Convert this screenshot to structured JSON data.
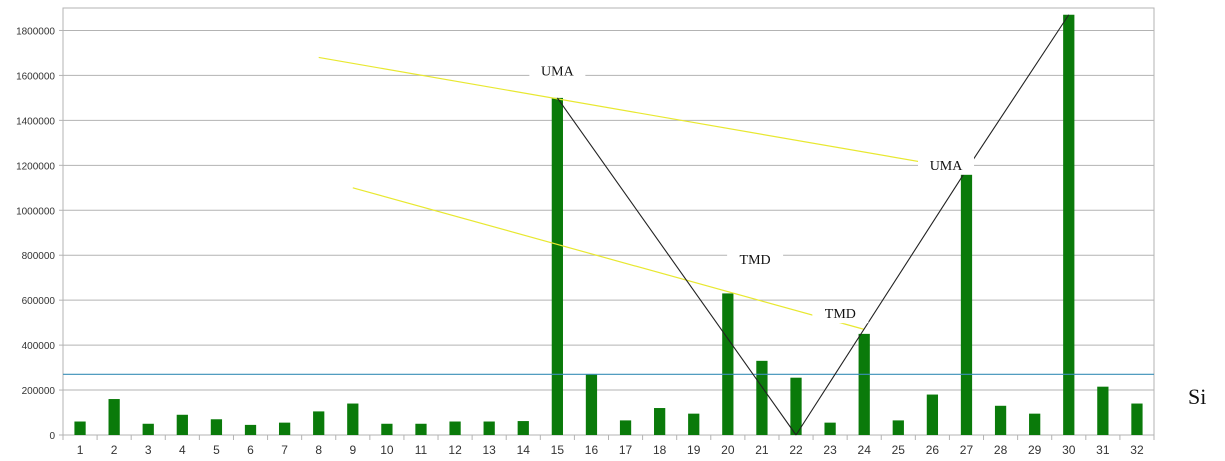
{
  "chart_data": {
    "type": "bar",
    "categories": [
      "1",
      "2",
      "3",
      "4",
      "5",
      "6",
      "7",
      "8",
      "9",
      "10",
      "11",
      "12",
      "13",
      "14",
      "15",
      "16",
      "17",
      "18",
      "19",
      "20",
      "21",
      "22",
      "23",
      "24",
      "25",
      "26",
      "27",
      "28",
      "29",
      "30",
      "31",
      "32"
    ],
    "values": [
      60000,
      160000,
      50000,
      90000,
      70000,
      45000,
      55000,
      105000,
      140000,
      50000,
      50000,
      60000,
      60000,
      62000,
      1500000,
      270000,
      65000,
      120000,
      95000,
      630000,
      330000,
      255000,
      55000,
      450000,
      65000,
      180000,
      1180000,
      130000,
      95000,
      1870000,
      215000,
      140000
    ],
    "ylim": [
      0,
      1900000
    ],
    "yticks": [
      0,
      200000,
      400000,
      600000,
      800000,
      1000000,
      1200000,
      1400000,
      1600000,
      1800000
    ],
    "ytick_labels": [
      "0",
      "200000",
      "400000",
      "600000",
      "800000",
      "1000000",
      "1200000",
      "1400000",
      "1600000",
      "1800000"
    ],
    "grid": true,
    "bar_color": "#0a7a0a",
    "reference_line": {
      "value": 270000,
      "color": "#3a8fb7"
    },
    "yellow_lines": [
      {
        "from": [
          8,
          1680000
        ],
        "to": [
          27,
          1180000
        ],
        "color": "#e8e830"
      },
      {
        "from": [
          9,
          1100000
        ],
        "to": [
          24,
          470000
        ],
        "color": "#e8e830"
      }
    ],
    "black_lines": [
      {
        "points": [
          [
            15,
            1500000
          ],
          [
            22,
            0
          ]
        ]
      },
      {
        "points": [
          [
            22,
            0
          ],
          [
            27,
            1180000
          ],
          [
            30,
            1870000
          ]
        ]
      }
    ],
    "annotations": [
      {
        "text": "UMA",
        "x": 15,
        "y": 1600000
      },
      {
        "text": "UMA",
        "x": 26.4,
        "y": 1180000
      },
      {
        "text": "TMD",
        "x": 20.8,
        "y": 760000
      },
      {
        "text": "TMD",
        "x": 23.3,
        "y": 520000
      }
    ]
  },
  "side_text": "Si"
}
